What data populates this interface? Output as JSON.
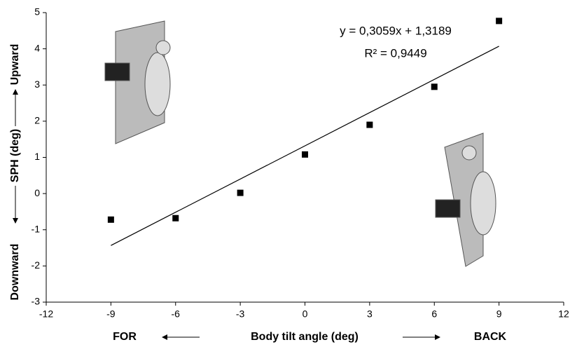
{
  "chart_data": {
    "type": "scatter",
    "x": [
      -9,
      -6,
      -3,
      0,
      3,
      6,
      9
    ],
    "values": [
      -0.72,
      -0.68,
      0.02,
      1.08,
      1.9,
      2.95,
      4.77
    ],
    "color": "#000000",
    "xlim": [
      -12,
      12
    ],
    "xticks": [
      -12,
      -9,
      -6,
      -3,
      0,
      3,
      6,
      9,
      12
    ],
    "ylim": [
      -3,
      5
    ],
    "yticks": [
      -3,
      -2,
      -1,
      0,
      1,
      2,
      3,
      4,
      5
    ],
    "xlabel": "Body tilt angle (deg)",
    "ylabel": "SPH (deg)",
    "annotations": {
      "left": "FOR",
      "right": "BACK",
      "down": "Downward",
      "up": "Upward"
    },
    "trendline": {
      "slope": 0.3059,
      "intercept": 1.3189,
      "label": "y = 0,3059x + 1,3189",
      "r2_label": "R² = 0,9449"
    }
  }
}
